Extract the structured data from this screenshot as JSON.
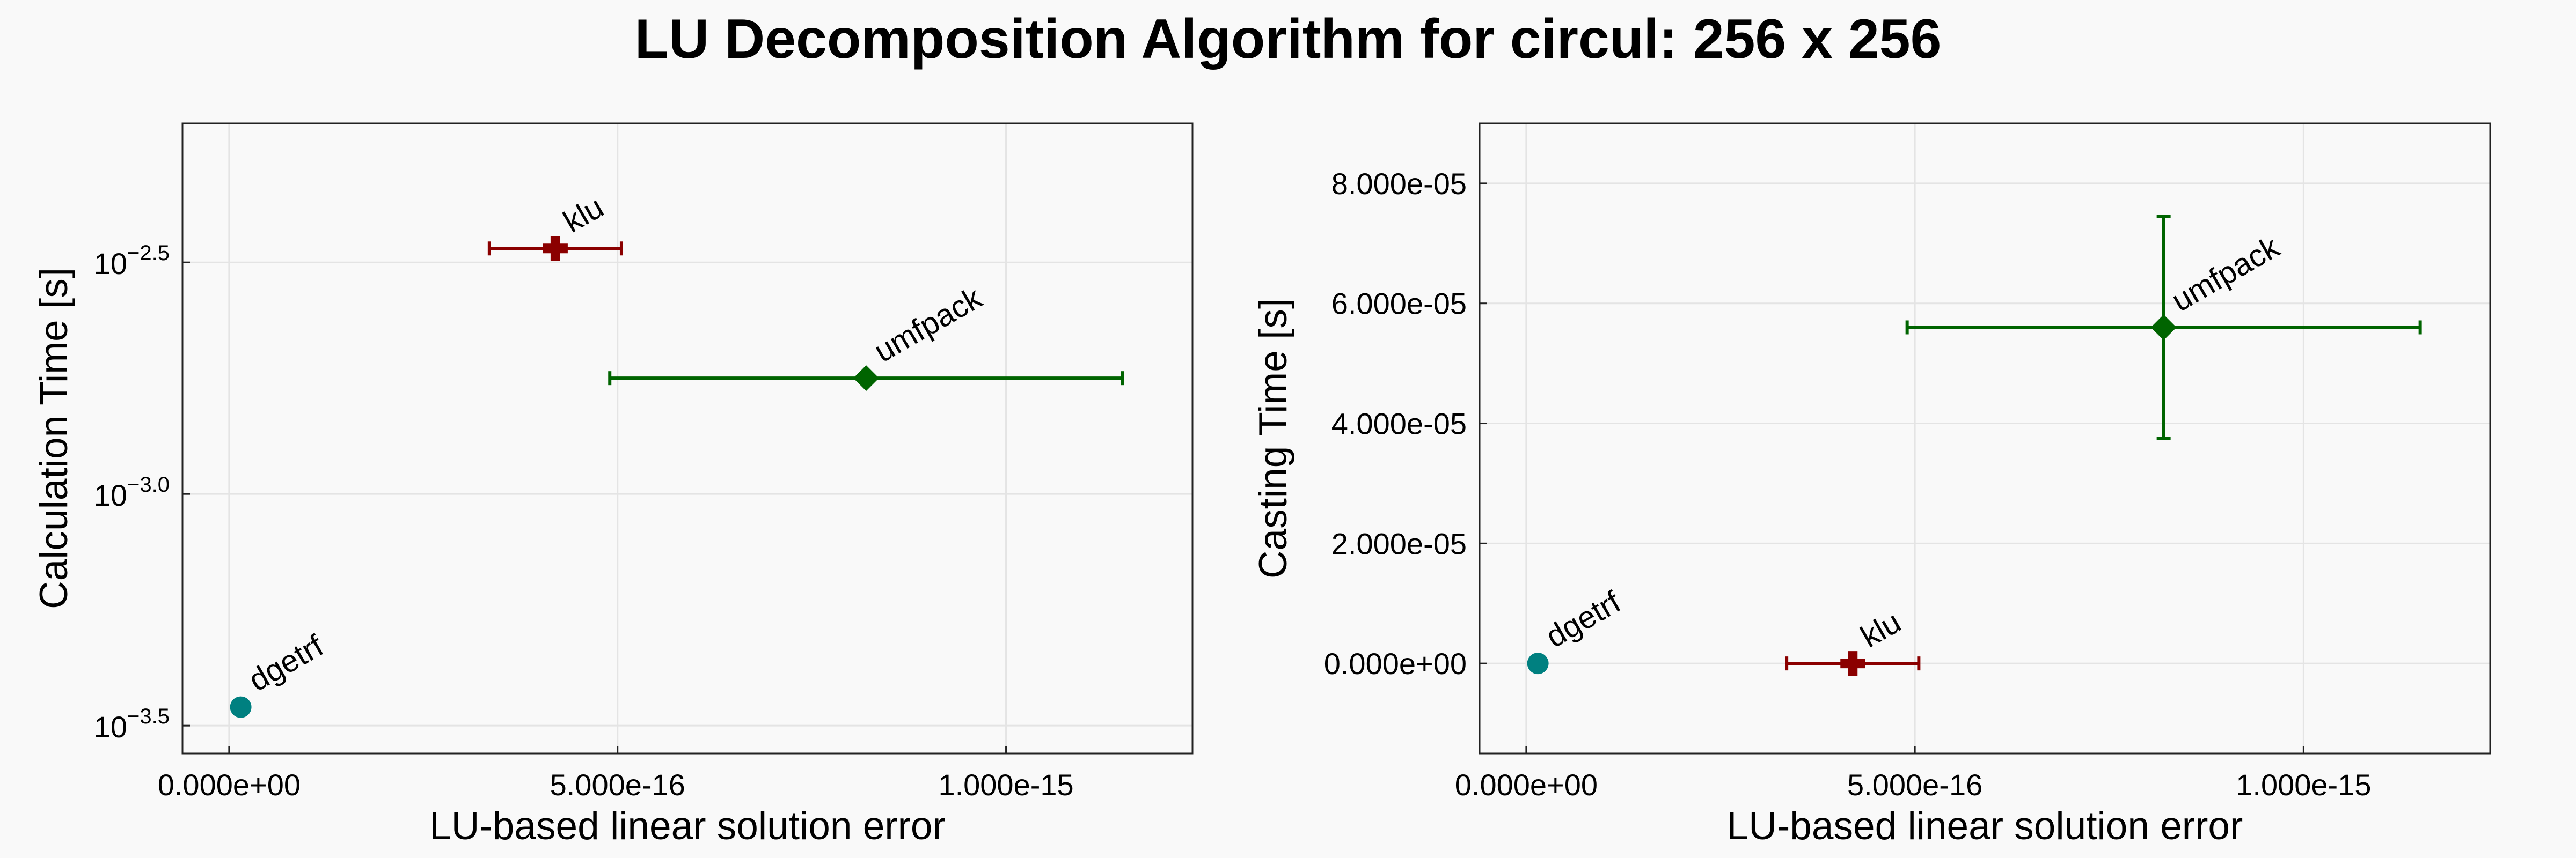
{
  "figure": {
    "title": "LU Decomposition Algorithm for circul: 256 x 256"
  },
  "chart_data": [
    {
      "type": "scatter",
      "xlabel": "LU-based linear solution error",
      "ylabel": "Calculation Time [s]",
      "y_scale": "log10",
      "xlim": [
        -6e-17,
        1.24e-15
      ],
      "ylim_log10": [
        -3.56,
        -2.2
      ],
      "x_ticks": [
        0,
        5e-16,
        1e-15
      ],
      "x_tick_labels": [
        "0.000e+00",
        "5.000e-16",
        "1.000e-15"
      ],
      "y_ticks_log10": [
        -3.5,
        -3.0,
        -2.5
      ],
      "y_tick_labels": [
        {
          "base": "10",
          "exponent": "−3.5"
        },
        {
          "base": "10",
          "exponent": "−3.0"
        },
        {
          "base": "10",
          "exponent": "−2.5"
        }
      ],
      "grid": true,
      "series": [
        {
          "name": "dgetrf",
          "marker": "circle",
          "color": "#008080",
          "x": 1.5e-17,
          "y_log10": -3.46,
          "xerr": [
            0,
            0
          ]
        },
        {
          "name": "klu",
          "marker": "cross",
          "color": "#8b0000",
          "x": 4.2e-16,
          "y_log10": -2.47,
          "xerr": [
            3.35e-16,
            5.05e-16
          ]
        },
        {
          "name": "umfpack",
          "marker": "diamond",
          "color": "#006400",
          "x": 8.2e-16,
          "y_log10": -2.75,
          "xerr": [
            4.9e-16,
            1.15e-15
          ]
        }
      ]
    },
    {
      "type": "scatter",
      "xlabel": "LU-based linear solution error",
      "ylabel": "Casting Time [s]",
      "y_scale": "linear",
      "xlim": [
        -6e-17,
        1.24e-15
      ],
      "ylim": [
        -1.5e-05,
        9e-05
      ],
      "x_ticks": [
        0,
        5e-16,
        1e-15
      ],
      "x_tick_labels": [
        "0.000e+00",
        "5.000e-16",
        "1.000e-15"
      ],
      "y_ticks": [
        0,
        2e-05,
        4e-05,
        6e-05,
        8e-05
      ],
      "y_tick_labels": [
        "0.000e+00",
        "2.000e-05",
        "4.000e-05",
        "6.000e-05",
        "8.000e-05"
      ],
      "grid": true,
      "series": [
        {
          "name": "dgetrf",
          "marker": "circle",
          "color": "#008080",
          "x": 1.5e-17,
          "y": 0,
          "xerr": [
            0,
            0
          ],
          "yerr": [
            0,
            0
          ]
        },
        {
          "name": "klu",
          "marker": "cross",
          "color": "#8b0000",
          "x": 4.2e-16,
          "y": 0,
          "xerr": [
            3.35e-16,
            5.05e-16
          ],
          "yerr": [
            0,
            0
          ]
        },
        {
          "name": "umfpack",
          "marker": "diamond",
          "color": "#006400",
          "x": 8.2e-16,
          "y": 5.6e-05,
          "xerr": [
            4.9e-16,
            1.15e-15
          ],
          "yerr": [
            3.75e-05,
            7.45e-05
          ]
        }
      ]
    }
  ]
}
